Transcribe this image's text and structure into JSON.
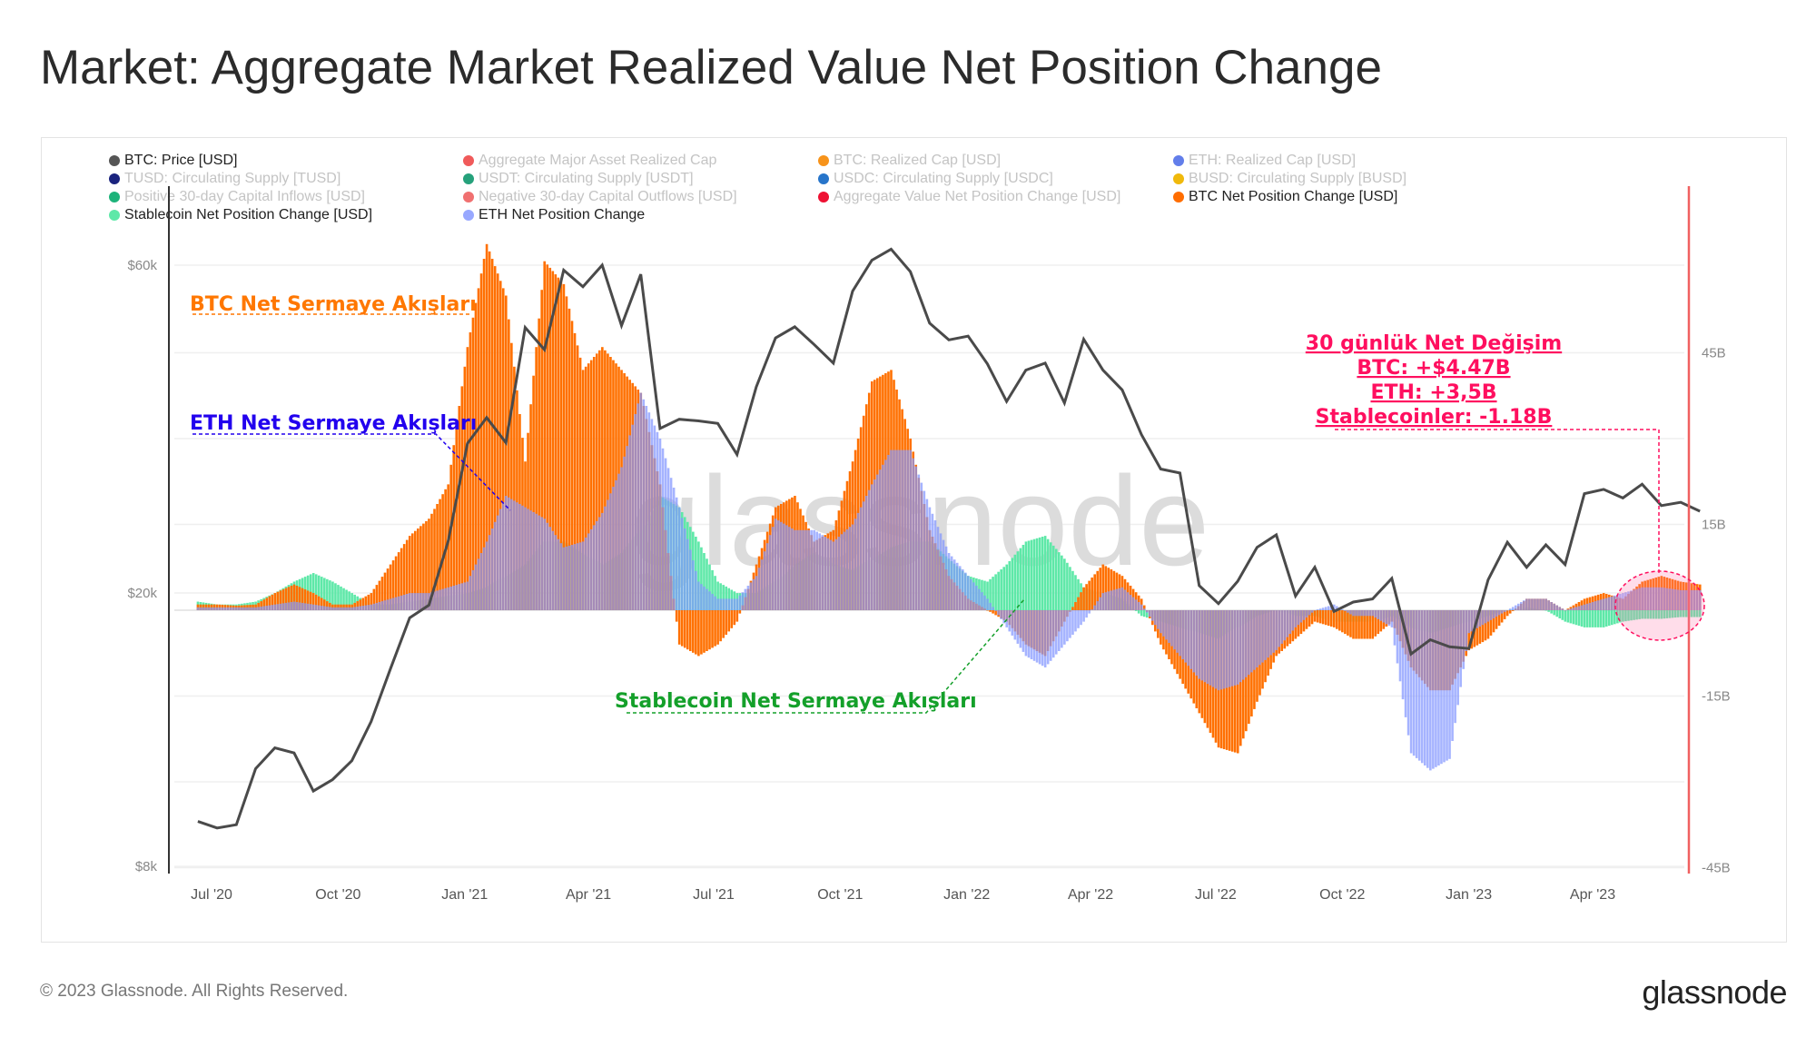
{
  "title": "Market: Aggregate Market Realized Value Net Position Change",
  "legend": [
    {
      "label": "BTC: Price [USD]",
      "color": "#555555",
      "active": true
    },
    {
      "label": "Aggregate Major Asset Realized Cap",
      "color": "#f05a5a",
      "active": false
    },
    {
      "label": "BTC: Realized Cap [USD]",
      "color": "#f7931a",
      "active": false
    },
    {
      "label": "ETH: Realized Cap [USD]",
      "color": "#627eea",
      "active": false
    },
    {
      "label": "TUSD: Circulating Supply [TUSD]",
      "color": "#1a237e",
      "active": false
    },
    {
      "label": "USDT: Circulating Supply [USDT]",
      "color": "#26a17b",
      "active": false
    },
    {
      "label": "USDC: Circulating Supply [USDC]",
      "color": "#2775ca",
      "active": false
    },
    {
      "label": "BUSD: Circulating Supply [BUSD]",
      "color": "#f0b90b",
      "active": false
    },
    {
      "label": "Positive 30-day Capital Inflows [USD]",
      "color": "#1db37a",
      "active": false
    },
    {
      "label": "Negative 30-day Capital Outflows [USD]",
      "color": "#f07070",
      "active": false
    },
    {
      "label": "Aggregate Value Net Position Change [USD]",
      "color": "#ee1133",
      "active": false
    },
    {
      "label": "BTC Net Position Change [USD]",
      "color": "#ff6d00",
      "active": true
    },
    {
      "label": "Stablecoin Net Position Change [USD]",
      "color": "#5ee8a8",
      "active": true
    },
    {
      "label": "ETH Net Position Change",
      "color": "#98a8ff",
      "active": true
    }
  ],
  "annotations": {
    "btc": "BTC Net Sermaye Akışları",
    "eth": "ETH Net Sermaye Akışları",
    "stable": "Stablecoin Net Sermaye Akışları",
    "summary": [
      "30 günlük Net Değişim",
      "BTC: +$4.47B",
      "ETH: +3,5B",
      "Stablecoinler: -1.18B"
    ],
    "colors": {
      "btc": "#ff7700",
      "eth": "#2200ee",
      "stable": "#14a02a",
      "summary": "#ff0f5f"
    }
  },
  "watermark": "glassnode",
  "footer": {
    "copyright": "© 2023 Glassnode. All Rights Reserved.",
    "logo": "glassnode"
  },
  "chart_data": {
    "type": "bar+line",
    "title": "Market: Aggregate Market Realized Value Net Position Change",
    "x_start": "2020-06-21",
    "x_step_days": 14,
    "x_ticks": [
      "Jul '20",
      "Oct '20",
      "Jan '21",
      "Apr '21",
      "Jul '21",
      "Oct '21",
      "Jan '22",
      "Apr '22",
      "Jul '22",
      "Oct '22",
      "Jan '23",
      "Apr '23"
    ],
    "y_left": {
      "label": "BTC Price",
      "scale": "log",
      "ticks": [
        "$60k",
        "$20k",
        "$8k"
      ],
      "tick_values": [
        60000,
        20000,
        8000
      ]
    },
    "y_right": {
      "label": "Net Position Change (B USD)",
      "ticks": [
        "45B",
        "15B",
        "-15B",
        "-45B"
      ],
      "tick_values": [
        45,
        15,
        -15,
        -45
      ],
      "range": [
        -45,
        45
      ]
    },
    "grid": true,
    "series": [
      {
        "name": "BTC: Price [USD]",
        "type": "line",
        "color": "#4a4a4a",
        "values": [
          9300,
          9100,
          9200,
          11100,
          11900,
          11700,
          10300,
          10700,
          11400,
          13000,
          15500,
          18400,
          19200,
          23800,
          33000,
          36000,
          33100,
          48700,
          45200,
          59000,
          55800,
          60000,
          49000,
          58200,
          34700,
          35800,
          35600,
          35300,
          31800,
          39900,
          47000,
          48800,
          46000,
          43200,
          55000,
          61000,
          63300,
          58700,
          49400,
          46700,
          47300,
          43100,
          38000,
          42200,
          43200,
          37800,
          46800,
          42200,
          39500,
          34000,
          30300,
          29900,
          20500,
          19300,
          20800,
          23300,
          24300,
          19800,
          21800,
          18800,
          19400,
          19600,
          21000,
          16300,
          17100,
          16700,
          16600,
          20900,
          23700,
          21800,
          23500,
          22000,
          27900,
          28300,
          27500,
          28800,
          26800,
          27100,
          26300
        ]
      },
      {
        "name": "Stablecoin Net Position Change [USD]",
        "type": "bar",
        "color": "#5ee8a8",
        "values": [
          1.5,
          1,
          1,
          1.5,
          3,
          5,
          6.5,
          5,
          3,
          1,
          1,
          1.5,
          2,
          2.5,
          3,
          4,
          6,
          8,
          12,
          12,
          10,
          8,
          10,
          14,
          20,
          18,
          12,
          5,
          3,
          3,
          5,
          8,
          10,
          8,
          7,
          9,
          11,
          12,
          12,
          9,
          6,
          5,
          8,
          12,
          13,
          9,
          4,
          3,
          2,
          -1,
          -2,
          -3,
          -4,
          -5,
          -3,
          -1,
          0,
          -1,
          -1,
          -2,
          -2,
          -2,
          -1,
          -3,
          -4,
          -3,
          -2,
          -1,
          0,
          0.5,
          0,
          -2,
          -3,
          -3,
          -2,
          -1.5,
          -1.5,
          -1.2,
          -1.2
        ]
      },
      {
        "name": "BTC Net Position Change [USD]",
        "type": "bar",
        "color": "#ff7000",
        "values": [
          1,
          1,
          0.8,
          1,
          3,
          4.5,
          3,
          1,
          1,
          3,
          8,
          13,
          16,
          22,
          46,
          64,
          55,
          26,
          61,
          57,
          42,
          46,
          42,
          38,
          22,
          -6,
          -8,
          -6,
          -2,
          8,
          18,
          20,
          12,
          14,
          26,
          40,
          42,
          30,
          14,
          6,
          2,
          0,
          -2,
          -6,
          -8,
          -2,
          4,
          8,
          6,
          2,
          -6,
          -12,
          -18,
          -24,
          -25,
          -16,
          -8,
          -5,
          -2,
          -3,
          -5,
          -5,
          -2,
          -10,
          -14,
          -14,
          -7,
          -5,
          -1,
          2,
          2,
          0,
          2,
          3,
          2,
          5,
          6,
          5,
          4.5
        ]
      },
      {
        "name": "ETH Net Position Change",
        "type": "bar",
        "color": "#8c9cff",
        "values": [
          0.5,
          0.5,
          0.5,
          0.5,
          1,
          1.5,
          1,
          0.5,
          0.5,
          1,
          2,
          3,
          3,
          4,
          5,
          12,
          20,
          18,
          16,
          11,
          12,
          17,
          25,
          38,
          30,
          18,
          5,
          2,
          2,
          6,
          16,
          14,
          14,
          12,
          15,
          22,
          28,
          28,
          18,
          10,
          6,
          2,
          -3,
          -8,
          -10,
          -6,
          -2,
          3,
          4,
          1,
          -4,
          -8,
          -12,
          -14,
          -13,
          -10,
          -7,
          -3,
          0,
          1,
          -1,
          -1,
          -3,
          -25,
          -28,
          -26,
          -4,
          -2,
          0,
          2,
          2,
          0,
          1,
          2,
          3,
          4,
          4,
          3.5,
          3.5
        ]
      }
    ]
  }
}
